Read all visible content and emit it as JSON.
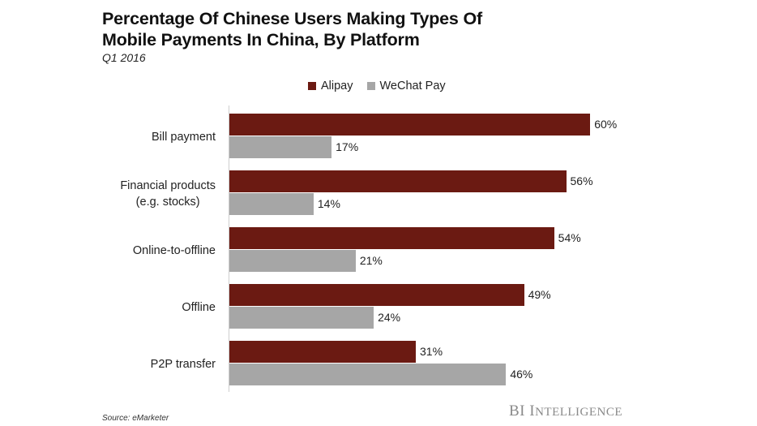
{
  "header": {
    "title_line1": "Percentage Of Chinese Users Making Types Of",
    "title_line2": "Mobile Payments In China, By Platform",
    "subtitle": "Q1 2016"
  },
  "legend": [
    {
      "label": "Alipay",
      "color": "#6B1A12"
    },
    {
      "label": "WeChat Pay",
      "color": "#A6A6A6"
    }
  ],
  "footer": {
    "source": "Source: eMarketer",
    "brand_bi": "BI",
    "brand_i": "I",
    "brand_rest": "NTELLIGENCE"
  },
  "chart_data": {
    "type": "bar",
    "orientation": "horizontal",
    "title": "Percentage Of Chinese Users Making Types Of Mobile Payments In China, By Platform",
    "subtitle": "Q1 2016",
    "categories": [
      "Bill payment",
      "Financial products (e.g. stocks)",
      "Online-to-offline",
      "Offline",
      "P2P transfer"
    ],
    "category_lines": [
      [
        "Bill payment"
      ],
      [
        "Financial products",
        "(e.g. stocks)"
      ],
      [
        "Online-to-offline"
      ],
      [
        "Offline"
      ],
      [
        "P2P transfer"
      ]
    ],
    "series": [
      {
        "name": "Alipay",
        "color": "#6B1A12",
        "values": [
          60,
          56,
          54,
          49,
          31
        ],
        "labels": [
          "60%",
          "56%",
          "54%",
          "49%",
          "31%"
        ]
      },
      {
        "name": "WeChat Pay",
        "color": "#A6A6A6",
        "values": [
          17,
          14,
          21,
          24,
          46
        ],
        "labels": [
          "17%",
          "14%",
          "21%",
          "24%",
          "46%"
        ]
      }
    ],
    "xlabel": "",
    "ylabel": "",
    "xlim": [
      0,
      70
    ],
    "grid": false,
    "legend_position": "top",
    "source": "Source: eMarketer"
  }
}
